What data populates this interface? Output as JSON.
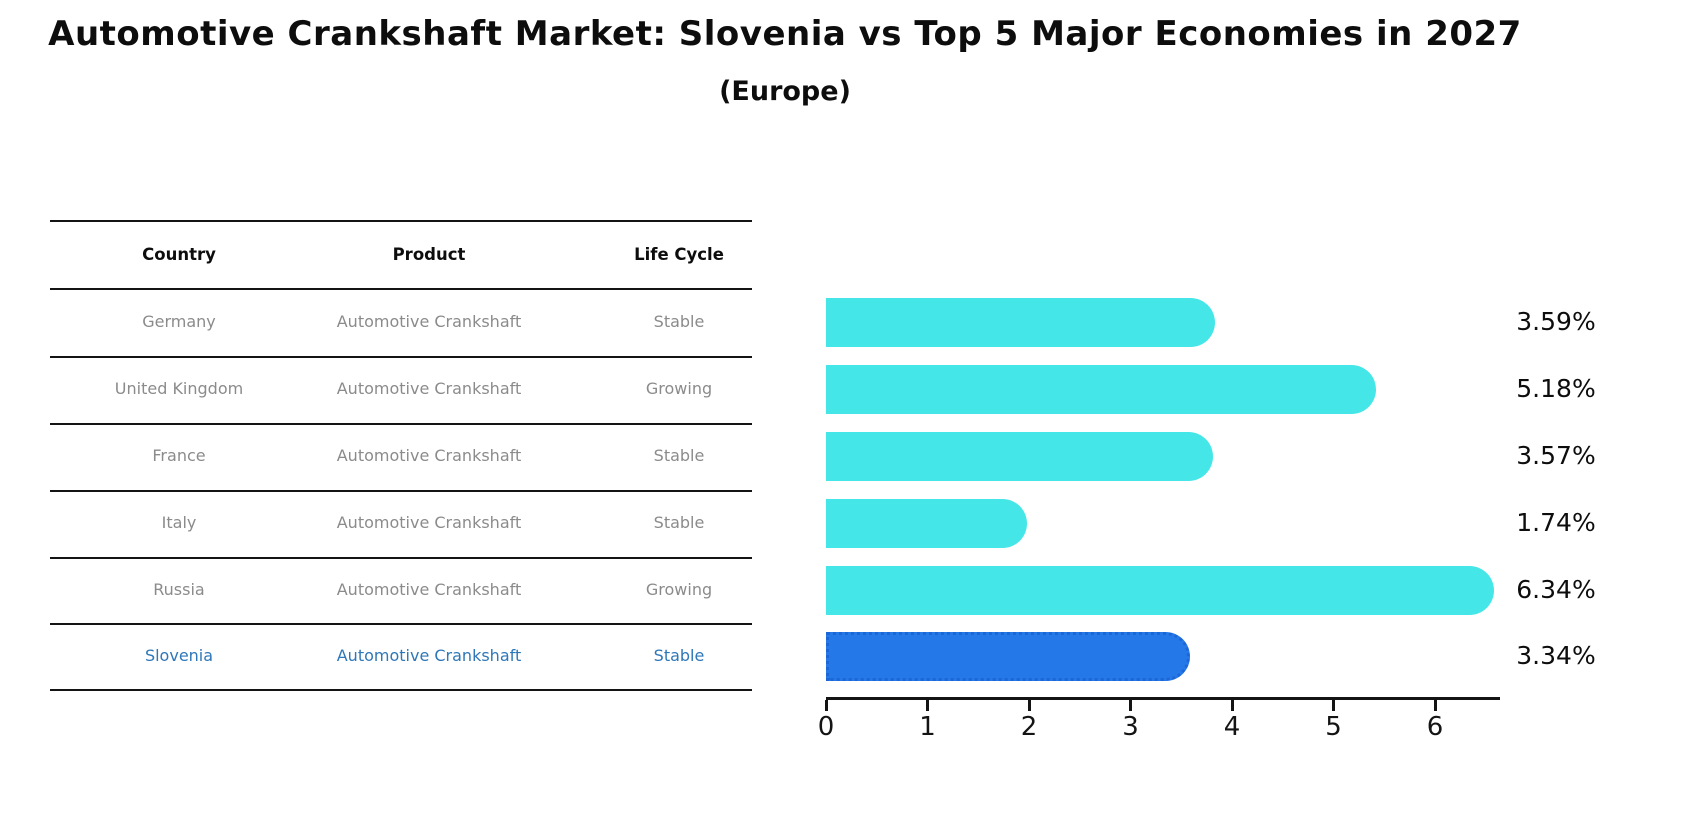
{
  "title": "Automotive Crankshaft Market: Slovenia vs Top 5 Major Economies in 2027",
  "subtitle": "(Europe)",
  "table": {
    "columns": [
      "Country",
      "Product",
      "Life Cycle"
    ],
    "rows": [
      {
        "country": "Germany",
        "product": "Automotive Crankshaft",
        "life_cycle": "Stable"
      },
      {
        "country": "United Kingdom",
        "product": "Automotive Crankshaft",
        "life_cycle": "Growing"
      },
      {
        "country": "France",
        "product": "Automotive Crankshaft",
        "life_cycle": "Stable"
      },
      {
        "country": "Italy",
        "product": "Automotive Crankshaft",
        "life_cycle": "Stable"
      },
      {
        "country": "Russia",
        "product": "Automotive Crankshaft",
        "life_cycle": "Growing"
      },
      {
        "country": "Slovenia",
        "product": "Automotive Crankshaft",
        "life_cycle": "Stable"
      }
    ]
  },
  "chart_data": {
    "type": "bar",
    "orientation": "horizontal",
    "title": "Automotive Crankshaft Market: Slovenia vs Top 5 Major Economies in 2027 (Europe)",
    "categories": [
      "Germany",
      "United Kingdom",
      "France",
      "Italy",
      "Russia",
      "Slovenia"
    ],
    "values": [
      3.59,
      5.18,
      3.57,
      1.74,
      6.34,
      3.34
    ],
    "value_labels": [
      "3.59%",
      "5.18%",
      "3.57%",
      "1.74%",
      "6.34%",
      "3.34%"
    ],
    "highlight_category": "Slovenia",
    "xlabel": "",
    "ylabel": "",
    "xlim": [
      0,
      6.6
    ],
    "xticks": [
      "0",
      "1",
      "2",
      "3",
      "4",
      "5",
      "6"
    ],
    "grid": false,
    "legend": false
  },
  "colors": {
    "bar": "#45e6e8",
    "highlight_bar": "#2478e8",
    "highlight_border": "#1d66d6",
    "row_text": "#8b8b8b",
    "highlight_text": "#2e77b8",
    "axis": "#141414"
  }
}
